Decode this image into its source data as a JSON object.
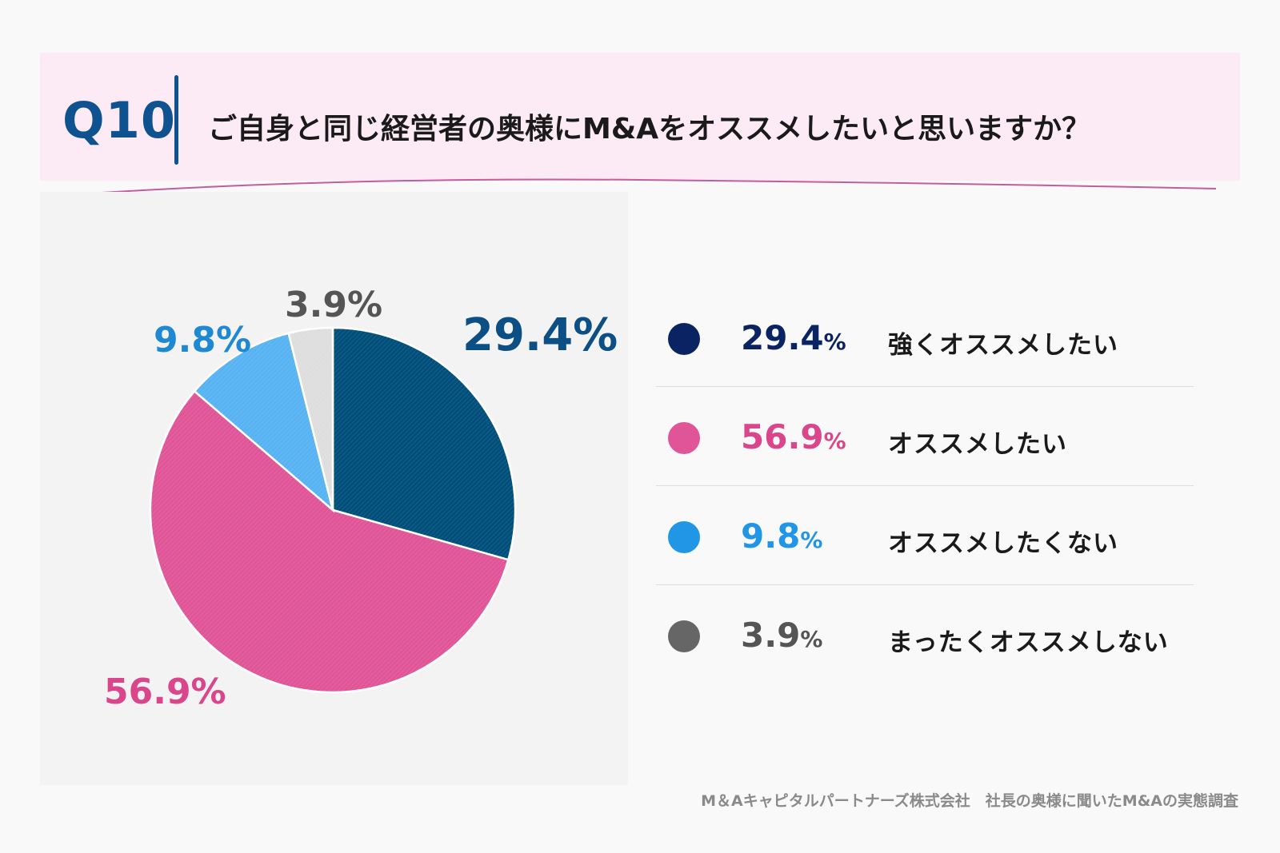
{
  "question": {
    "number": "Q10",
    "text": "ご自身と同じ経営者の奥様にM&Aをオススメしたいと思いますか？"
  },
  "colors": {
    "accent": "#0f5290",
    "header_bg": "#fcebf4",
    "curve": "#c45c9e"
  },
  "chart_data": {
    "type": "pie",
    "title": "ご自身と同じ経営者の奥様にM&Aをオススメしたいと思いますか？",
    "unit": "%",
    "slices": [
      {
        "label": "強くオススメしたい",
        "value": 29.4,
        "display": "29.4%",
        "color": "#004f7b",
        "label_color": "#0b4f84",
        "legend_dot": "#0a2463",
        "legend_text_color": "#0a2463"
      },
      {
        "label": "オススメしたい",
        "value": 56.9,
        "display": "56.9%",
        "color": "#e05597",
        "label_color": "#d9468c",
        "legend_dot": "#e05597",
        "legend_text_color": "#d9468c"
      },
      {
        "label": "オススメしたくない",
        "value": 9.8,
        "display": "9.8%",
        "color": "#58b3f2",
        "label_color": "#1f88d2",
        "legend_dot": "#2196e6",
        "legend_text_color": "#2196e6"
      },
      {
        "label": "まったくオススメしない",
        "value": 3.9,
        "display": "3.9%",
        "color": "#dedede",
        "label_color": "#555555",
        "legend_dot": "#666666",
        "legend_text_color": "#555555"
      }
    ]
  },
  "legend": [
    {
      "number": "29.4",
      "unit": "%",
      "label": "強くオススメしたい"
    },
    {
      "number": "56.9",
      "unit": "%",
      "label": "オススメしたい"
    },
    {
      "number": "9.8",
      "unit": "%",
      "label": "オススメしたくない"
    },
    {
      "number": "3.9",
      "unit": "%",
      "label": "まったくオススメしない"
    }
  ],
  "source": "M＆Aキャピタルパートナーズ株式会社　社長の奥様に聞いたM&Aの実態調査"
}
